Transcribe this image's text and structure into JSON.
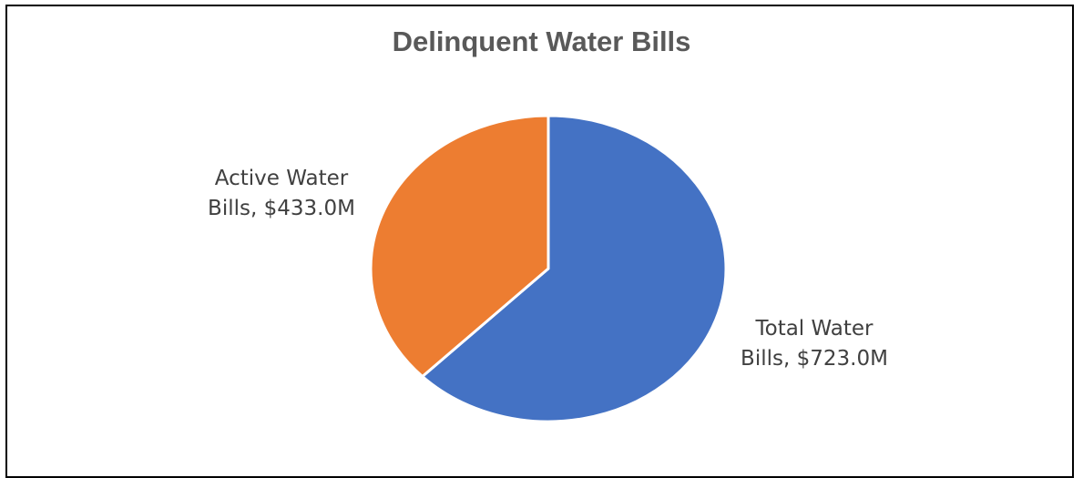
{
  "chart_data": {
    "type": "pie",
    "title": "Delinquent Water Bills",
    "slices": [
      {
        "name": "Total Water Bills",
        "value": 723.0,
        "label_line1": "Total Water",
        "label_line2": "Bills, $723.0M",
        "color": "#4472C4"
      },
      {
        "name": "Active Water Bills",
        "value": 433.0,
        "label_line1": "Active Water",
        "label_line2": "Bills, $433.0M",
        "color": "#ED7D31"
      }
    ],
    "units": "$M",
    "legend": "none"
  }
}
